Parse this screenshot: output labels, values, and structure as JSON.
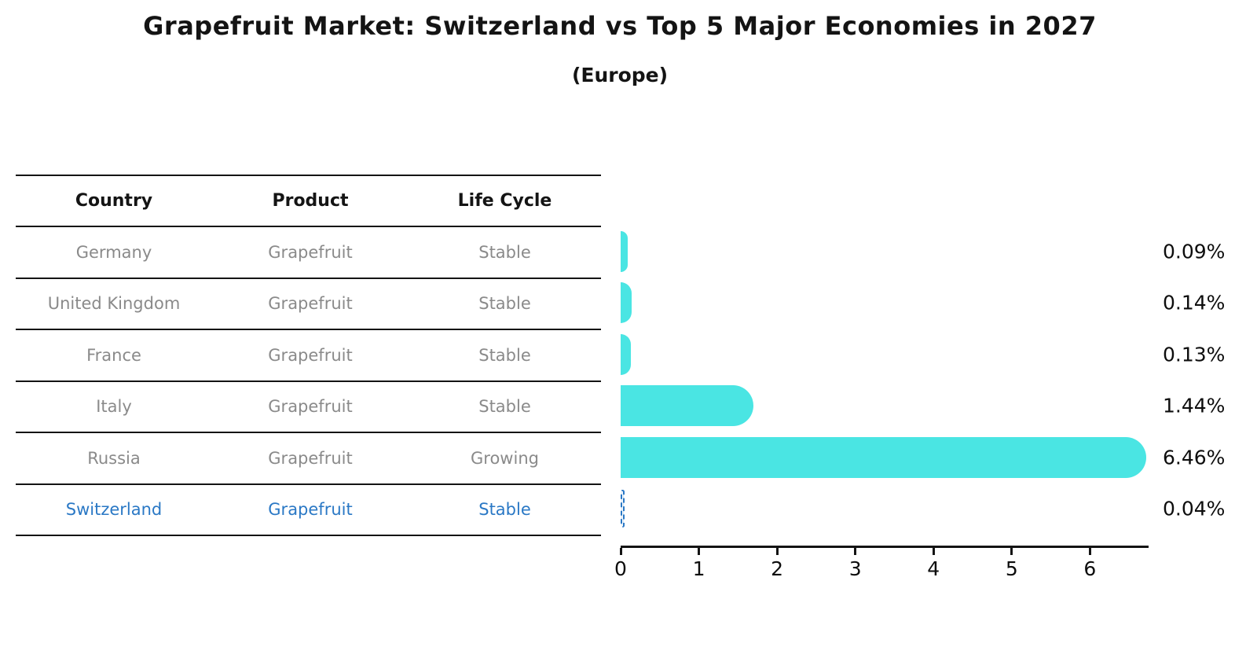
{
  "chart_data": {
    "type": "bar",
    "orientation": "horizontal",
    "title": "Grapefruit Market: Switzerland vs Top 5 Major Economies in 2027",
    "subtitle": "(Europe)",
    "categories": [
      "Germany",
      "United Kingdom",
      "France",
      "Italy",
      "Russia",
      "Switzerland"
    ],
    "values": [
      0.09,
      0.14,
      0.13,
      1.44,
      6.46,
      0.04
    ],
    "value_labels": [
      "0.09%",
      "0.14%",
      "0.13%",
      "1.44%",
      "6.46%",
      "0.04%"
    ],
    "xlabel": "",
    "ylabel": "",
    "xlim": [
      0,
      6.75
    ],
    "x_ticks": [
      0,
      1,
      2,
      3,
      4,
      5,
      6
    ],
    "grid": false,
    "legend": "none",
    "bar_color": "#4AE5E3",
    "highlight_color": "#2A78C5",
    "highlight_index": 5
  },
  "table": {
    "headers": [
      "Country",
      "Product",
      "Life Cycle"
    ],
    "rows": [
      {
        "country": "Germany",
        "product": "Grapefruit",
        "life_cycle": "Stable"
      },
      {
        "country": "United Kingdom",
        "product": "Grapefruit",
        "life_cycle": "Stable"
      },
      {
        "country": "France",
        "product": "Grapefruit",
        "life_cycle": "Stable"
      },
      {
        "country": "Italy",
        "product": "Grapefruit",
        "life_cycle": "Stable"
      },
      {
        "country": "Russia",
        "product": "Grapefruit",
        "life_cycle": "Growing"
      },
      {
        "country": "Switzerland",
        "product": "Grapefruit",
        "life_cycle": "Stable"
      }
    ],
    "text_color": "#8A8A8A",
    "header_text_color": "#141414"
  }
}
